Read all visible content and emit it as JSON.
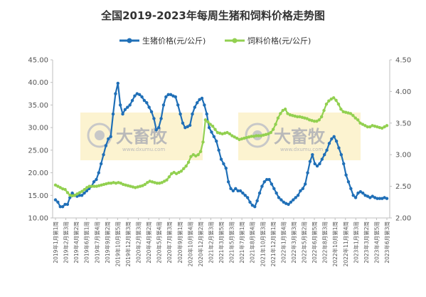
{
  "chart_data": {
    "type": "line",
    "title": "全国2019-2023年每周生猪和饲料价格走势图",
    "y_left": {
      "min": 10,
      "max": 45,
      "step": 5,
      "decimals": 2
    },
    "y_right": {
      "min": 2.0,
      "max": 4.5,
      "step": 0.5,
      "decimals": 2
    },
    "legend_position": "top-center",
    "grid": false,
    "x_labels": [
      "2019年1月第1周",
      "2019年2月第3周",
      "2019年4月第2周",
      "2019年6月第1周",
      "2019年7月第4周",
      "2019年9月第2周",
      "2019年10月第5周",
      "2019年12月第3周",
      "2020年2月第3周",
      "2020年4月第2周",
      "2020年5月第4周",
      "2020年7月第3周",
      "2020年9月第1周",
      "2020年10月第4周",
      "2020年12月第2周",
      "2021年2月第3周",
      "2021年3月第5周",
      "2021年5月第3周",
      "2021年7月第1周",
      "2021年8月第4周",
      "2021年10月第3周",
      "2021年12月第1周",
      "2022年1月第4周",
      "2022年3月第3周",
      "2022年5月第2周",
      "2022年6月第5周",
      "2022年8月第3周",
      "2022年10月第1周",
      "2022年11月第4周",
      "2023年1月第3周",
      "2023年3月第2周",
      "2023年4月第5周",
      "2023年6月第3周"
    ],
    "series": [
      {
        "name": "生猪价格(元/公斤)",
        "axis": "left",
        "color": "#1f6fb7",
        "values": [
          14.0,
          13.5,
          12.5,
          12.5,
          13.0,
          13.0,
          14.5,
          15.5,
          15.0,
          14.8,
          15.0,
          15.0,
          15.5,
          16.0,
          16.5,
          17.0,
          18.0,
          18.5,
          20.0,
          22.0,
          24.0,
          26.0,
          27.5,
          28.0,
          33.0,
          37.5,
          39.8,
          35.0,
          33.0,
          34.0,
          34.5,
          35.0,
          36.0,
          37.0,
          37.5,
          37.3,
          36.8,
          36.0,
          35.5,
          34.5,
          33.5,
          32.0,
          29.5,
          30.0,
          32.0,
          35.0,
          36.8,
          37.3,
          37.3,
          37.0,
          36.8,
          35.0,
          33.0,
          31.0,
          30.0,
          30.2,
          30.5,
          33.0,
          34.5,
          35.5,
          36.2,
          36.5,
          35.0,
          33.0,
          30.0,
          29.0,
          28.0,
          27.0,
          25.0,
          23.0,
          22.0,
          21.0,
          18.0,
          16.5,
          16.0,
          16.5,
          16.0,
          16.0,
          15.5,
          15.0,
          14.5,
          13.5,
          12.8,
          12.5,
          13.8,
          15.5,
          17.0,
          18.0,
          18.5,
          18.5,
          17.5,
          16.5,
          15.5,
          14.5,
          14.0,
          13.5,
          13.2,
          13.0,
          13.5,
          14.0,
          14.5,
          15.0,
          16.0,
          16.5,
          17.5,
          20.0,
          22.5,
          24.0,
          22.0,
          21.5,
          22.0,
          23.0,
          24.0,
          25.0,
          26.5,
          27.5,
          28.0,
          27.0,
          25.5,
          24.0,
          22.0,
          19.5,
          18.0,
          16.5,
          15.0,
          14.5,
          15.5,
          15.8,
          15.5,
          15.0,
          14.8,
          14.5,
          14.8,
          14.5,
          14.3,
          14.3,
          14.3,
          14.5,
          14.3
        ]
      },
      {
        "name": "饲料价格(元/公斤)",
        "axis": "right",
        "color": "#92d050",
        "values": [
          2.52,
          2.5,
          2.48,
          2.46,
          2.45,
          2.4,
          2.36,
          2.35,
          2.36,
          2.38,
          2.4,
          2.42,
          2.45,
          2.48,
          2.5,
          2.5,
          2.5,
          2.5,
          2.51,
          2.52,
          2.53,
          2.54,
          2.55,
          2.55,
          2.56,
          2.55,
          2.56,
          2.55,
          2.53,
          2.52,
          2.51,
          2.5,
          2.49,
          2.48,
          2.49,
          2.5,
          2.51,
          2.53,
          2.56,
          2.58,
          2.57,
          2.56,
          2.55,
          2.55,
          2.56,
          2.58,
          2.6,
          2.65,
          2.7,
          2.72,
          2.7,
          2.72,
          2.74,
          2.78,
          2.82,
          2.88,
          2.97,
          3.0,
          2.98,
          3.0,
          3.05,
          3.2,
          3.55,
          3.52,
          3.48,
          3.45,
          3.4,
          3.35,
          3.34,
          3.33,
          3.34,
          3.35,
          3.33,
          3.3,
          3.28,
          3.26,
          3.24,
          3.25,
          3.26,
          3.27,
          3.28,
          3.29,
          3.29,
          3.3,
          3.3,
          3.3,
          3.31,
          3.32,
          3.33,
          3.35,
          3.4,
          3.48,
          3.58,
          3.65,
          3.7,
          3.72,
          3.65,
          3.63,
          3.62,
          3.61,
          3.6,
          3.6,
          3.59,
          3.58,
          3.57,
          3.55,
          3.54,
          3.53,
          3.53,
          3.55,
          3.6,
          3.7,
          3.8,
          3.85,
          3.88,
          3.9,
          3.86,
          3.8,
          3.72,
          3.68,
          3.67,
          3.66,
          3.65,
          3.62,
          3.58,
          3.55,
          3.5,
          3.48,
          3.46,
          3.44,
          3.44,
          3.46,
          3.45,
          3.44,
          3.43,
          3.42,
          3.44,
          3.46
        ]
      }
    ]
  },
  "watermarks": [
    {
      "name": "大畜牧",
      "sub": "www.dxumu.com"
    },
    {
      "name": "大畜牧",
      "sub": "www.dxumu.com"
    }
  ],
  "colors": {
    "axis": "#bfbfbf",
    "watermark_bg": "#fbf1c8",
    "watermark_logo": "#c8c8c8"
  }
}
